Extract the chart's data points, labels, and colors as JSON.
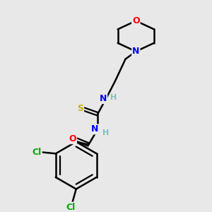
{
  "background_color": "#e8e8e8",
  "bond_color": "#000000",
  "atom_colors": {
    "O": "#ff0000",
    "N": "#0000ff",
    "S": "#c8b400",
    "Cl": "#00aa00",
    "H": "#7fbfbf",
    "C": "#000000"
  },
  "figsize": [
    3.0,
    3.0
  ],
  "dpi": 100
}
